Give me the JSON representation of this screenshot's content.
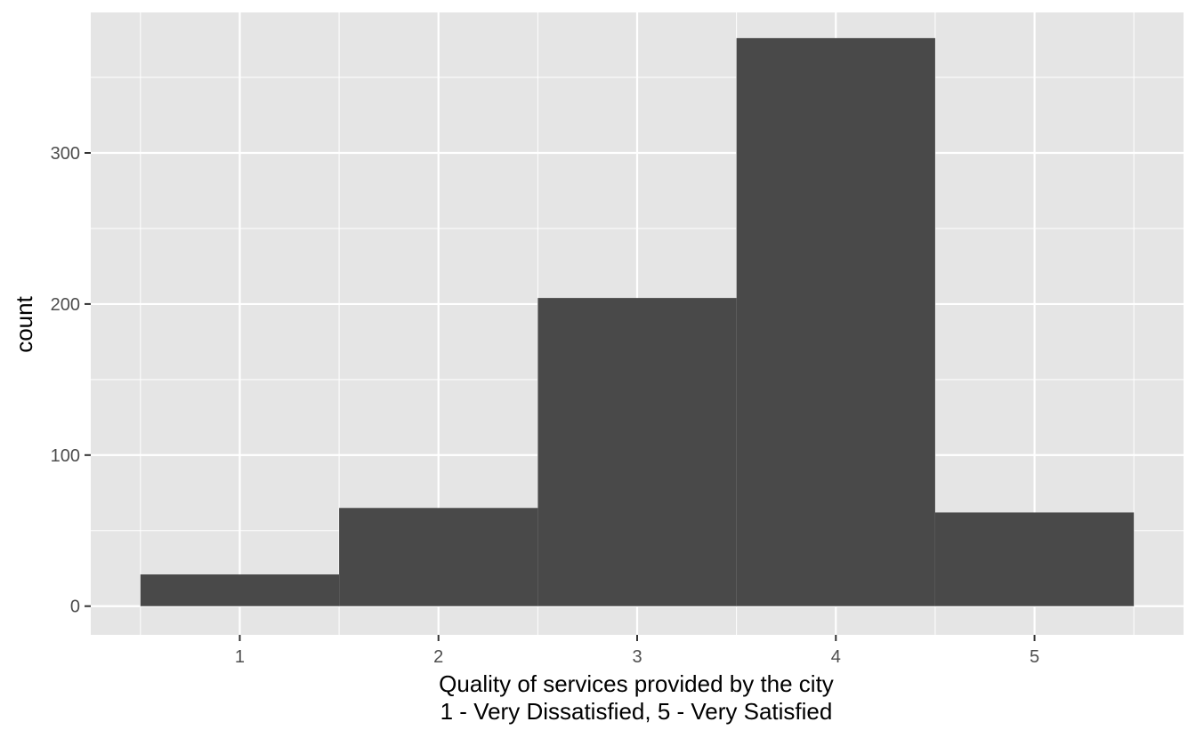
{
  "chart_data": {
    "type": "bar",
    "subtype": "histogram",
    "categories": [
      "1",
      "2",
      "3",
      "4",
      "5"
    ],
    "x": [
      1,
      2,
      3,
      4,
      5
    ],
    "values": [
      21,
      65,
      204,
      376,
      62
    ],
    "title": "",
    "xlabel": "Quality of services provided by the city",
    "xlabel_line2": "1 - Very Dissatisfied, 5 - Very Satisfied",
    "ylabel": "count",
    "xlim": [
      0.25,
      5.75
    ],
    "ylim": [
      -19,
      393
    ],
    "y_ticks": [
      0,
      100,
      200,
      300
    ],
    "y_tick_labels": [
      "0",
      "100",
      "200",
      "300"
    ],
    "x_tick_labels": [
      "1",
      "2",
      "3",
      "4",
      "5"
    ],
    "grid": true,
    "legend": "none",
    "colors": {
      "panel_background": "#e5e5e5",
      "grid_line": "#ffffff",
      "bar_fill": "#494949",
      "tick_text": "#4d4d4d",
      "tick_mark": "#333333",
      "title_text": "#000000"
    }
  }
}
